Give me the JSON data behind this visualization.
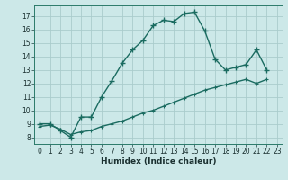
{
  "title": "",
  "xlabel": "Humidex (Indice chaleur)",
  "bg_color": "#cce8e8",
  "grid_color": "#aacccc",
  "line_color": "#1a6b60",
  "xlim": [
    -0.5,
    23.5
  ],
  "ylim": [
    7.5,
    17.8
  ],
  "xticks": [
    0,
    1,
    2,
    3,
    4,
    5,
    6,
    7,
    8,
    9,
    10,
    11,
    12,
    13,
    14,
    15,
    16,
    17,
    18,
    19,
    20,
    21,
    22,
    23
  ],
  "yticks": [
    8,
    9,
    10,
    11,
    12,
    13,
    14,
    15,
    16,
    17
  ],
  "curve1_x": [
    0,
    1,
    2,
    3,
    4,
    5,
    6,
    7,
    8,
    9,
    10,
    11,
    12,
    13,
    14,
    15,
    16,
    17,
    18,
    19,
    20,
    21,
    22
  ],
  "curve1_y": [
    9.0,
    9.0,
    8.5,
    8.0,
    9.5,
    9.5,
    11.0,
    12.2,
    13.5,
    14.5,
    15.2,
    16.3,
    16.7,
    16.6,
    17.2,
    17.3,
    15.9,
    13.8,
    13.0,
    13.2,
    13.4,
    14.5,
    13.0
  ],
  "curve2_x": [
    0,
    1,
    2,
    3,
    4,
    5,
    6,
    7,
    8,
    9,
    10,
    11,
    12,
    13,
    14,
    15,
    16,
    17,
    18,
    19,
    20,
    21,
    22
  ],
  "curve2_y": [
    8.8,
    8.9,
    8.6,
    8.2,
    8.4,
    8.5,
    8.8,
    9.0,
    9.2,
    9.5,
    9.8,
    10.0,
    10.3,
    10.6,
    10.9,
    11.2,
    11.5,
    11.7,
    11.9,
    12.1,
    12.3,
    12.0,
    12.3
  ]
}
